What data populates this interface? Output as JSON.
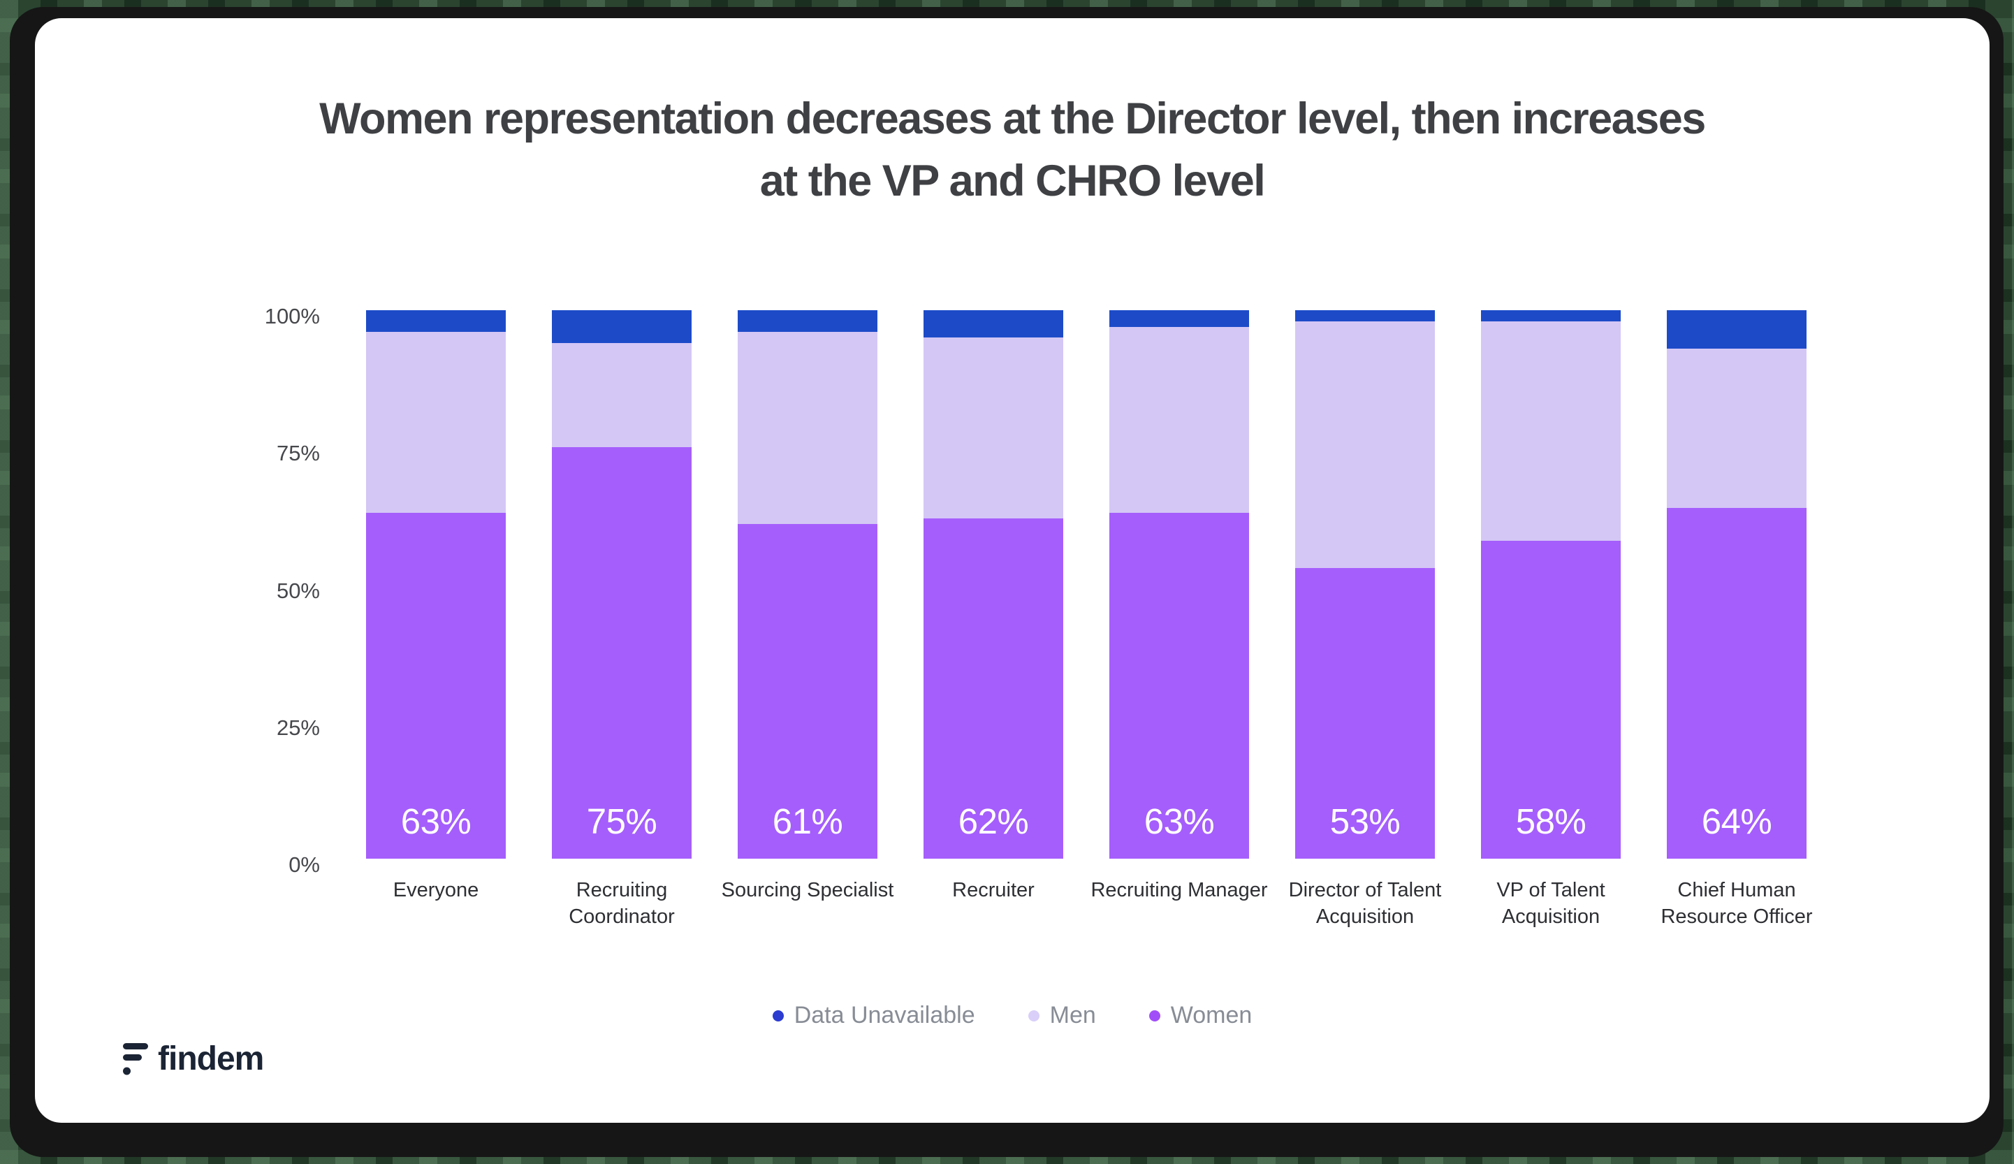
{
  "frame": {
    "outer_background": "#2a4430",
    "border_color": "#161616",
    "card_color": "#ffffff"
  },
  "title": {
    "lines": [
      "Women representation decreases at the Director level, then increases",
      "at the VP and CHRO level"
    ],
    "color": "#3e4043"
  },
  "chart_data": {
    "type": "bar",
    "stacked": true,
    "title": "Women representation decreases at the Director level, then increases at the VP and CHRO level",
    "categories": [
      "Everyone",
      "Recruiting Coordinator",
      "Sourcing Specialist",
      "Recruiter",
      "Recruiting Manager",
      "Director of Talent Acquisition",
      "VP of Talent Acquisition",
      "Chief Human Resource Officer"
    ],
    "series": [
      {
        "name": "Women",
        "color": "#a55efc",
        "values": [
          63,
          75,
          61,
          62,
          63,
          53,
          58,
          64
        ]
      },
      {
        "name": "Men",
        "color": "#d4c7f5",
        "values": [
          33,
          19,
          35,
          33,
          34,
          45,
          40,
          29
        ]
      },
      {
        "name": "Data Unavailable",
        "color": "#1d4bc8",
        "values": [
          4,
          6,
          4,
          5,
          3,
          2,
          2,
          7
        ]
      }
    ],
    "bar_value_labels": [
      "63%",
      "75%",
      "61%",
      "62%",
      "63%",
      "53%",
      "58%",
      "64%"
    ],
    "y_ticks": [
      "100%",
      "75%",
      "50%",
      "25%",
      "0%"
    ],
    "ylim": [
      0,
      100
    ],
    "grid": false,
    "legend_position": "bottom"
  },
  "legend": {
    "items": [
      {
        "label": "Data Unavailable",
        "marker_color": "#2c3cd1"
      },
      {
        "label": "Men",
        "marker_color": "#d9cff9"
      },
      {
        "label": "Women",
        "marker_color": "#a14ef8"
      }
    ],
    "text_color": "#878c95"
  },
  "brand": {
    "wordmark": "findem",
    "logo_color": "#1b2434"
  }
}
